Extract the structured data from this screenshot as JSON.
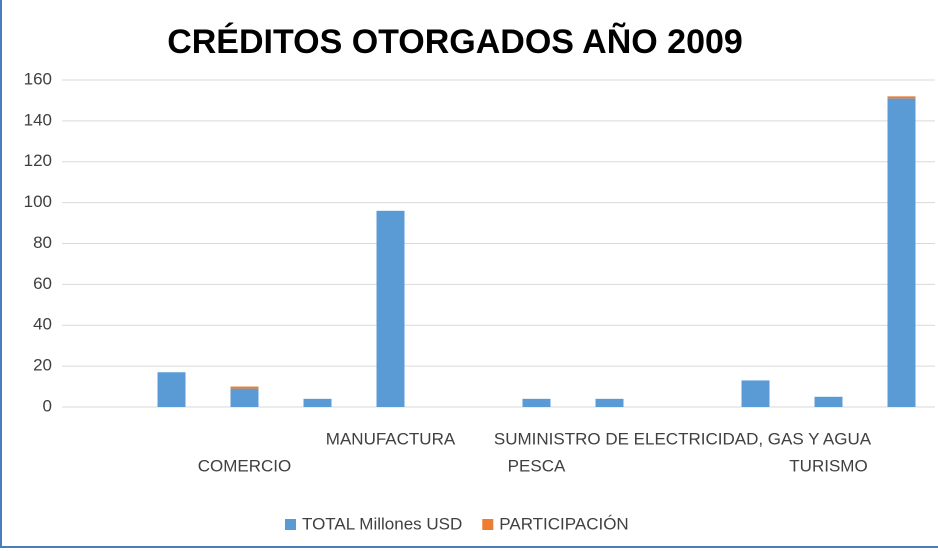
{
  "chart_data": {
    "type": "bar",
    "stacked": true,
    "title": "CRÉDITOS OTORGADOS AÑO 2009",
    "categories": [
      null,
      null,
      "COMERCIO",
      null,
      "MANUFACTURA",
      null,
      "PESCA",
      null,
      "SUMINISTRO DE ELECTRICIDAD, GAS Y AGUA",
      null,
      "TURISMO",
      null
    ],
    "series": [
      {
        "name": "TOTAL Millones USD",
        "color": "#5b9bd5",
        "values": [
          0,
          17,
          9,
          4,
          96,
          0,
          4,
          4,
          0,
          13,
          5,
          151
        ]
      },
      {
        "name": "PARTICIPACIÓN",
        "color": "#ed7d31",
        "values": [
          0,
          0,
          1,
          0,
          0,
          0,
          0,
          0,
          0,
          0,
          0,
          1
        ]
      }
    ],
    "ylim": [
      0,
      160
    ],
    "yticks": [
      0,
      20,
      40,
      60,
      80,
      100,
      120,
      140,
      160
    ],
    "grid": true,
    "legend": "bottom"
  }
}
